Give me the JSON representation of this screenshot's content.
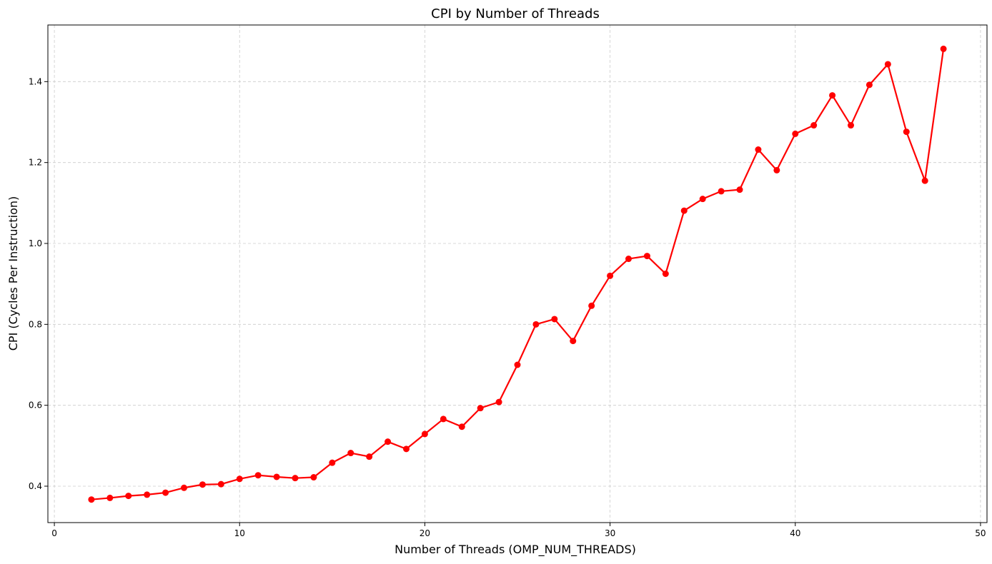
{
  "chart_data": {
    "type": "line",
    "title": "CPI by Number of Threads",
    "xlabel": "Number of Threads (OMP_NUM_THREADS)",
    "ylabel": "CPI (Cycles Per Instruction)",
    "xlim": [
      -0.35,
      50.35
    ],
    "ylim": [
      0.31,
      1.54
    ],
    "xticks": [
      0,
      10,
      20,
      30,
      40,
      50
    ],
    "yticks": [
      0.4,
      0.6,
      0.8,
      1.0,
      1.2,
      1.4
    ],
    "xtick_labels": [
      "0",
      "10",
      "20",
      "30",
      "40",
      "50"
    ],
    "ytick_labels": [
      "0.4",
      "0.6",
      "0.8",
      "1.0",
      "1.2",
      "1.4"
    ],
    "grid": true,
    "grid_style": "dashed",
    "line_color": "#ff0000",
    "marker": "circle",
    "series": [
      {
        "x": [
          2,
          3,
          4,
          5,
          6,
          7,
          8,
          9,
          10,
          11,
          12,
          13,
          14,
          15,
          16,
          17,
          18,
          19,
          20,
          21,
          22,
          23,
          24,
          25,
          26,
          27,
          28,
          29,
          30,
          31,
          32,
          33,
          34,
          35,
          36,
          37,
          38,
          39,
          40,
          41,
          42,
          43,
          44,
          45,
          46,
          47,
          48
        ],
        "values": [
          0.367,
          0.371,
          0.376,
          0.379,
          0.384,
          0.396,
          0.404,
          0.405,
          0.418,
          0.427,
          0.423,
          0.42,
          0.422,
          0.458,
          0.482,
          0.473,
          0.51,
          0.492,
          0.529,
          0.566,
          0.547,
          0.593,
          0.608,
          0.7,
          0.8,
          0.813,
          0.759,
          0.846,
          0.92,
          0.962,
          0.969,
          0.925,
          1.081,
          1.11,
          1.129,
          1.133,
          1.232,
          1.181,
          1.271,
          1.292,
          1.366,
          1.292,
          1.392,
          1.443,
          1.276,
          1.155,
          1.481
        ]
      }
    ]
  }
}
